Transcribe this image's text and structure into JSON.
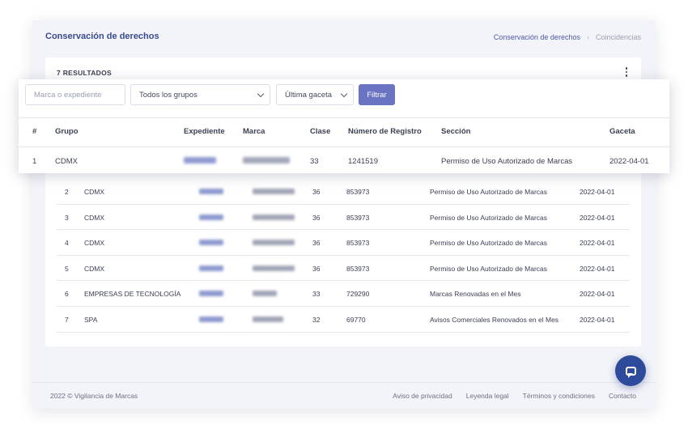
{
  "header": {
    "title": "Conservación de derechos",
    "breadcrumb": [
      "Conservación de derechos",
      "Coincidencias"
    ]
  },
  "card": {
    "results_count": "7 RESULTADOS"
  },
  "filters": {
    "search_placeholder": "Marca o expediente",
    "group_select": "Todos los grupos",
    "gazette_select": "Última gaceta",
    "filter_button": "Filtrar"
  },
  "table": {
    "columns": [
      "#",
      "Grupo",
      "Expediente",
      "Marca",
      "Clase",
      "Número de Registro",
      "Sección",
      "Gaceta"
    ],
    "rows": [
      {
        "n": "1",
        "grupo": "CDMX",
        "clase": "33",
        "registro": "1241519",
        "seccion": "Permiso de Uso Autorizado de Marcas",
        "gaceta": "2022-04-01"
      },
      {
        "n": "2",
        "grupo": "CDMX",
        "clase": "36",
        "registro": "853973",
        "seccion": "Permiso de Uso Autorizado de Marcas",
        "gaceta": "2022-04-01"
      },
      {
        "n": "3",
        "grupo": "CDMX",
        "clase": "36",
        "registro": "853973",
        "seccion": "Permiso de Uso Autorizado de Marcas",
        "gaceta": "2022-04-01"
      },
      {
        "n": "4",
        "grupo": "CDMX",
        "clase": "36",
        "registro": "853973",
        "seccion": "Permiso de Uso Autorizado de Marcas",
        "gaceta": "2022-04-01"
      },
      {
        "n": "5",
        "grupo": "CDMX",
        "clase": "36",
        "registro": "853973",
        "seccion": "Permiso de Uso Autorizado de Marcas",
        "gaceta": "2022-04-01"
      },
      {
        "n": "6",
        "grupo": "EMPRESAS DE TECNOLOGÍA",
        "clase": "33",
        "registro": "729290",
        "seccion": "Marcas Renovadas en el Mes",
        "gaceta": "2022-04-01"
      },
      {
        "n": "7",
        "grupo": "SPA",
        "clase": "32",
        "registro": "69770",
        "seccion": "Avisos Comerciales Renovados en el Mes",
        "gaceta": "2022-04-01"
      }
    ]
  },
  "footer": {
    "copyright": "2022 © Vigilancia de Marcas",
    "links": [
      "Aviso de privacidad",
      "Leyenda legal",
      "Términos y condiciones",
      "Contacto"
    ]
  },
  "icons": {
    "more": "more-vertical-icon",
    "chat": "chat-icon"
  }
}
